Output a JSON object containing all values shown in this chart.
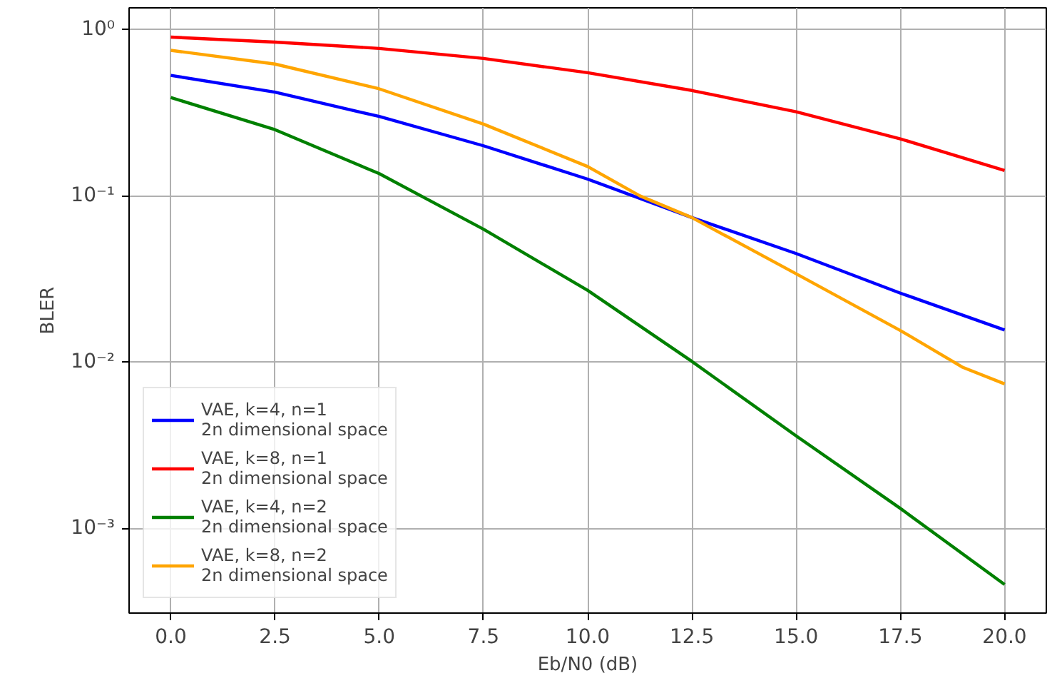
{
  "chart_data": {
    "type": "line",
    "xlabel": "Eb/N0 (dB)",
    "ylabel": "BLER",
    "x": [
      0,
      2.5,
      5,
      7.5,
      10,
      12.5,
      15,
      17.5,
      20
    ],
    "series": [
      {
        "name": "VAE, k=4, n=1\n2n dimensional space",
        "color": "#0000ff",
        "values": [
          0.53,
          0.42,
          0.3,
          0.2,
          0.126,
          0.074,
          0.045,
          0.026,
          0.0156
        ]
      },
      {
        "name": "VAE, k=8, n=1\n2n dimensional space",
        "color": "#ff0000",
        "values": [
          0.9,
          0.84,
          0.77,
          0.67,
          0.55,
          0.43,
          0.32,
          0.22,
          0.142
        ]
      },
      {
        "name": "VAE, k=4, n=2\n2n dimensional space",
        "color": "#008000",
        "values": [
          0.39,
          0.25,
          0.136,
          0.063,
          0.027,
          0.0101,
          0.0036,
          0.00132,
          0.00046
        ]
      },
      {
        "name": "VAE, k=8, n=2\n2n dimensional space",
        "color": "#ffa500",
        "x": [
          0,
          2.5,
          5,
          7.5,
          10,
          11.25,
          12.5,
          15,
          17.5,
          19,
          20
        ],
        "values": [
          0.75,
          0.62,
          0.44,
          0.27,
          0.15,
          0.1,
          0.074,
          0.034,
          0.0155,
          0.0093,
          0.0074
        ]
      }
    ],
    "log": "y",
    "xlim": [
      -1,
      21
    ],
    "ylim": [
      0.00031,
      1.35
    ],
    "xticks": [
      {
        "value": 0,
        "label": "0.0"
      },
      {
        "value": 2.5,
        "label": "2.5"
      },
      {
        "value": 5,
        "label": "5.0"
      },
      {
        "value": 7.5,
        "label": "7.5"
      },
      {
        "value": 10,
        "label": "10.0"
      },
      {
        "value": 12.5,
        "label": "12.5"
      },
      {
        "value": 15,
        "label": "15.0"
      },
      {
        "value": 17.5,
        "label": "17.5"
      },
      {
        "value": 20,
        "label": "20.0"
      }
    ],
    "yticks": [
      {
        "value": 0.001,
        "label": "10⁻³"
      },
      {
        "value": 0.01,
        "label": "10⁻²"
      },
      {
        "value": 0.1,
        "label": "10⁻¹"
      },
      {
        "value": 1,
        "label": "10⁰"
      }
    ],
    "grid": true,
    "legend": "bottom left",
    "line_style": "solid"
  }
}
